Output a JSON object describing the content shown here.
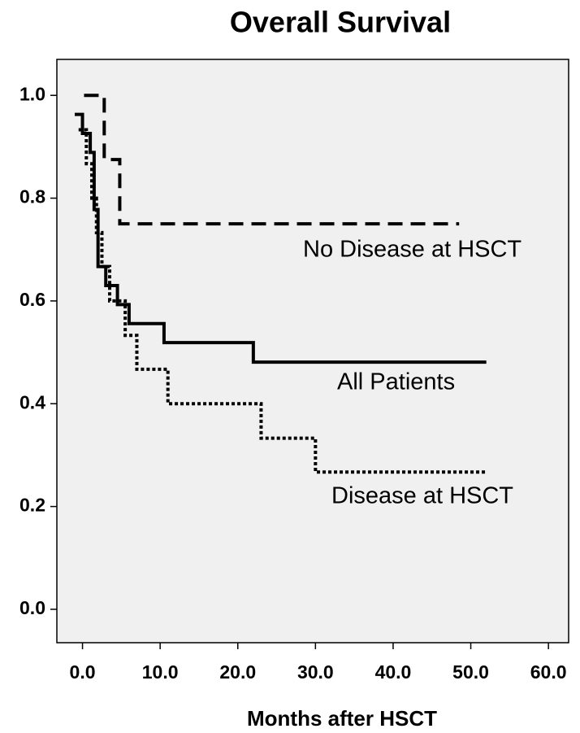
{
  "chart_data": {
    "type": "step",
    "title": "Overall Survival",
    "x_label": "Months after HSCT",
    "xlim": [
      -3.3,
      62.6
    ],
    "ylim": [
      -0.065,
      1.07
    ],
    "xticks": [
      {
        "value": 0,
        "label": "0.0"
      },
      {
        "value": 10,
        "label": "10.0"
      },
      {
        "value": 20,
        "label": "20.0"
      },
      {
        "value": 30,
        "label": "30.0"
      },
      {
        "value": 40,
        "label": "40.0"
      },
      {
        "value": 50,
        "label": "50.0"
      },
      {
        "value": 60,
        "label": "60.0"
      }
    ],
    "yticks": [
      {
        "value": 0,
        "label": "0.0"
      },
      0.2,
      0.4,
      0.6,
      0.8,
      {
        "value": 1,
        "label": "1.0"
      }
    ],
    "background": "#f0f0f0",
    "series": [
      {
        "name": "No Disease at HSCT",
        "color": "#000000",
        "dash": "dashed",
        "x": [
          0.2,
          2.8,
          4.8,
          48.5
        ],
        "values": [
          1.0,
          0.875,
          0.75,
          0.75
        ]
      },
      {
        "name": "All Patients",
        "color": "#000000",
        "dash": "solid",
        "x": [
          -1,
          0,
          1,
          1.5,
          2,
          3,
          4.5,
          6,
          10.5,
          22,
          52
        ],
        "values": [
          0.963,
          0.926,
          0.889,
          0.778,
          0.667,
          0.63,
          0.593,
          0.556,
          0.519,
          0.481,
          0.481
        ]
      },
      {
        "name": "Disease at HSCT",
        "color": "#000000",
        "dash": "dotted",
        "x": [
          -0.5,
          0.5,
          1.2,
          1.8,
          2.5,
          3.5,
          5.5,
          7,
          11,
          23,
          30,
          52
        ],
        "values": [
          0.933,
          0.867,
          0.8,
          0.733,
          0.667,
          0.6,
          0.533,
          0.467,
          0.4,
          0.333,
          0.267,
          0.267
        ]
      }
    ]
  }
}
